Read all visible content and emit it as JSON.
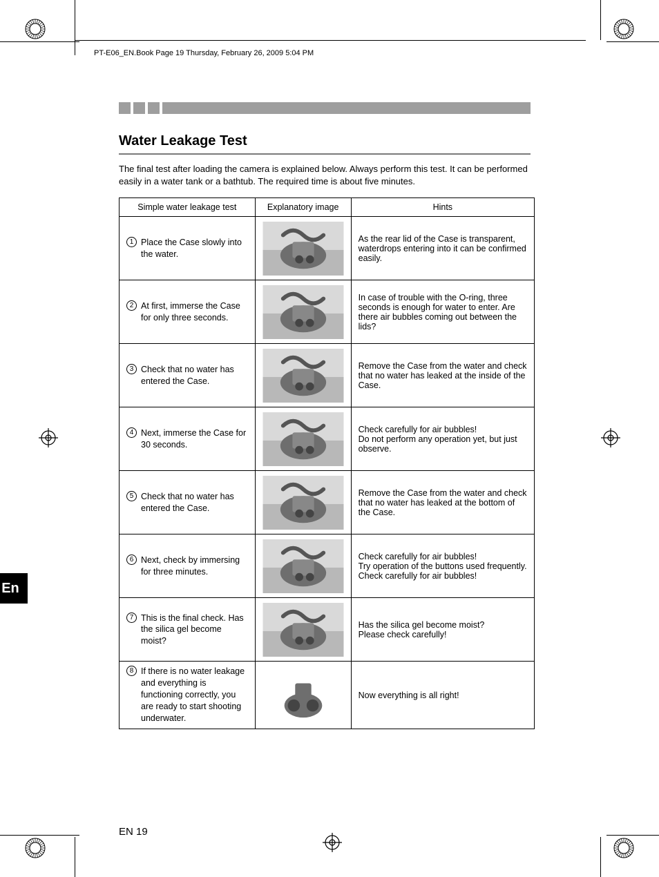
{
  "header": "PT-E06_EN.Book  Page 19  Thursday, February 26, 2009  5:04 PM",
  "title": "Water Leakage Test",
  "intro": "The final test after loading the camera is explained below. Always perform this test. It can be performed easily in a water tank or a bathtub. The required time is about five minutes.",
  "table": {
    "headers": [
      "Simple water leakage test",
      "Explanatory image",
      "Hints"
    ],
    "rows": [
      {
        "num": "1",
        "step": "Place the Case slowly into the water.",
        "hint": "As the rear lid of the Case is transparent, waterdrops entering into it can be confirmed easily."
      },
      {
        "num": "2",
        "step": "At first, immerse the Case for only three seconds.",
        "hint": "In case of trouble with the O-ring, three seconds is enough for water to enter. Are there air bubbles coming out between the lids?"
      },
      {
        "num": "3",
        "step": "Check that no water has entered the Case.",
        "hint": "Remove the Case from the water and check that no water has leaked at the inside of the Case."
      },
      {
        "num": "4",
        "step": "Next, immerse the Case for 30 seconds.",
        "hint": "Check carefully for air bubbles!\nDo not perform any operation yet, but just observe."
      },
      {
        "num": "5",
        "step": "Check that no water has entered the Case.",
        "hint": "Remove the Case from the water and check that no water has leaked at the bottom of the Case."
      },
      {
        "num": "6",
        "step": "Next, check by immersing for three minutes.",
        "hint": "Check carefully for air bubbles!\nTry operation of the buttons used frequently. Check carefully for air bubbles!"
      },
      {
        "num": "7",
        "step": "This is the final check. Has the silica gel become moist?",
        "hint": "Has the silica gel become moist?\nPlease check carefully!"
      },
      {
        "num": "8",
        "step": "If there is no water leakage and everything is functioning correctly, you are ready to start shooting underwater.",
        "hint": "Now everything is all right!"
      }
    ]
  },
  "lang_tab": "En",
  "page_number": "EN 19",
  "colors": {
    "deco_gray": "#9e9e9e",
    "title_rule": "#7a7a7a",
    "img_ph_a": "#b8b8b8",
    "img_ph_b": "#6e6e6e"
  }
}
